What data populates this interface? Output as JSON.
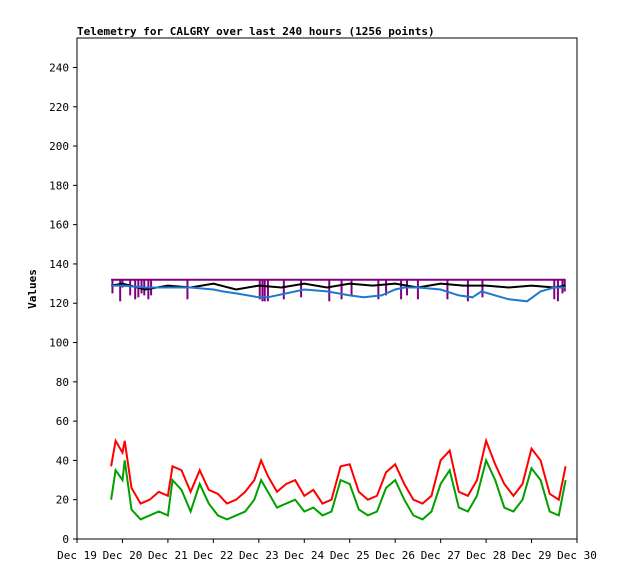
{
  "chart_data": {
    "type": "line",
    "title": "Telemetry for CALGRY over last 240 hours (1256 points)",
    "xlabel": "",
    "ylabel": "Values",
    "ylim": [
      0,
      255
    ],
    "xlim": [
      0,
      11
    ],
    "y_ticks": [
      0,
      20,
      40,
      60,
      80,
      100,
      120,
      140,
      160,
      180,
      200,
      220,
      240
    ],
    "x_ticks": [
      {
        "x": 0,
        "label": "Dec 19"
      },
      {
        "x": 1,
        "label": "Dec 20"
      },
      {
        "x": 2,
        "label": "Dec 21"
      },
      {
        "x": 3,
        "label": "Dec 22"
      },
      {
        "x": 4,
        "label": "Dec 23"
      },
      {
        "x": 5,
        "label": "Dec 24"
      },
      {
        "x": 6,
        "label": "Dec 25"
      },
      {
        "x": 7,
        "label": "Dec 26"
      },
      {
        "x": 8,
        "label": "Dec 27"
      },
      {
        "x": 9,
        "label": "Dec 28"
      },
      {
        "x": 10,
        "label": "Dec 29"
      },
      {
        "x": 11,
        "label": "Dec 30"
      }
    ],
    "grid": false,
    "legend": "none",
    "series": [
      {
        "color": "#7f007f",
        "style": "flat with downward spikes",
        "x": [
          0.75,
          10.75
        ],
        "values": [
          132,
          132
        ],
        "spikes": [
          {
            "x": 0.78,
            "low": 125
          },
          {
            "x": 0.95,
            "low": 121
          },
          {
            "x": 1.0,
            "low": 128
          },
          {
            "x": 1.17,
            "low": 124
          },
          {
            "x": 1.28,
            "low": 122
          },
          {
            "x": 1.35,
            "low": 123
          },
          {
            "x": 1.42,
            "low": 125
          },
          {
            "x": 1.48,
            "low": 124
          },
          {
            "x": 1.57,
            "low": 122
          },
          {
            "x": 1.63,
            "low": 124
          },
          {
            "x": 2.43,
            "low": 122
          },
          {
            "x": 4.02,
            "low": 122
          },
          {
            "x": 4.08,
            "low": 121
          },
          {
            "x": 4.13,
            "low": 121
          },
          {
            "x": 4.2,
            "low": 121
          },
          {
            "x": 4.55,
            "low": 122
          },
          {
            "x": 4.93,
            "low": 123
          },
          {
            "x": 5.55,
            "low": 121
          },
          {
            "x": 5.82,
            "low": 122
          },
          {
            "x": 6.04,
            "low": 124
          },
          {
            "x": 6.63,
            "low": 122
          },
          {
            "x": 6.8,
            "low": 124
          },
          {
            "x": 7.13,
            "low": 122
          },
          {
            "x": 7.26,
            "low": 124
          },
          {
            "x": 7.5,
            "low": 122
          },
          {
            "x": 8.15,
            "low": 122
          },
          {
            "x": 8.6,
            "low": 121
          },
          {
            "x": 8.92,
            "low": 123
          },
          {
            "x": 10.5,
            "low": 122
          },
          {
            "x": 10.58,
            "low": 121
          },
          {
            "x": 10.68,
            "low": 125
          },
          {
            "x": 10.73,
            "low": 126
          }
        ]
      },
      {
        "color": "#000000",
        "x": [
          0.75,
          1.0,
          1.5,
          2.0,
          2.5,
          3.0,
          3.5,
          4.0,
          4.5,
          5.0,
          5.5,
          6.0,
          6.5,
          7.0,
          7.5,
          8.0,
          8.5,
          9.0,
          9.5,
          10.0,
          10.5,
          10.75
        ],
        "values": [
          129,
          130,
          127,
          129,
          128,
          130,
          127,
          129,
          128,
          130,
          128,
          130,
          129,
          130,
          128,
          130,
          129,
          129,
          128,
          129,
          128,
          129
        ]
      },
      {
        "color": "#1f78d0",
        "x": [
          0.75,
          1.0,
          1.5,
          2.0,
          2.5,
          3.0,
          3.2,
          3.5,
          4.0,
          4.2,
          4.6,
          5.0,
          5.5,
          6.0,
          6.3,
          6.7,
          7.0,
          7.2,
          7.5,
          8.0,
          8.4,
          8.7,
          8.9,
          9.2,
          9.5,
          9.9,
          10.2,
          10.5,
          10.75
        ],
        "values": [
          129,
          129,
          128,
          128,
          128,
          127,
          126,
          125,
          123,
          123,
          125,
          127,
          126,
          124,
          123,
          124,
          127,
          128,
          128,
          127,
          124,
          123,
          126,
          124,
          122,
          121,
          126,
          128,
          128
        ]
      },
      {
        "color": "#ff0000",
        "x": [
          0.75,
          0.85,
          1.0,
          1.05,
          1.2,
          1.4,
          1.6,
          1.8,
          2.0,
          2.1,
          2.3,
          2.5,
          2.7,
          2.9,
          3.1,
          3.3,
          3.5,
          3.7,
          3.9,
          4.05,
          4.2,
          4.4,
          4.6,
          4.8,
          5.0,
          5.2,
          5.4,
          5.6,
          5.8,
          6.0,
          6.2,
          6.4,
          6.6,
          6.8,
          7.0,
          7.2,
          7.4,
          7.6,
          7.8,
          8.0,
          8.2,
          8.4,
          8.6,
          8.8,
          9.0,
          9.2,
          9.4,
          9.6,
          9.8,
          10.0,
          10.2,
          10.4,
          10.6,
          10.75
        ],
        "values": [
          37,
          50,
          44,
          50,
          26,
          18,
          20,
          24,
          22,
          37,
          35,
          24,
          35,
          25,
          23,
          18,
          20,
          24,
          30,
          40,
          32,
          24,
          28,
          30,
          22,
          25,
          18,
          20,
          37,
          38,
          24,
          20,
          22,
          34,
          38,
          28,
          20,
          18,
          22,
          40,
          45,
          24,
          22,
          30,
          50,
          38,
          28,
          22,
          28,
          46,
          40,
          23,
          20,
          37
        ]
      },
      {
        "color": "#00a000",
        "x": [
          0.75,
          0.85,
          1.0,
          1.05,
          1.2,
          1.4,
          1.6,
          1.8,
          2.0,
          2.1,
          2.3,
          2.5,
          2.7,
          2.9,
          3.1,
          3.3,
          3.5,
          3.7,
          3.9,
          4.05,
          4.2,
          4.4,
          4.6,
          4.8,
          5.0,
          5.2,
          5.4,
          5.6,
          5.8,
          6.0,
          6.2,
          6.4,
          6.6,
          6.8,
          7.0,
          7.2,
          7.4,
          7.6,
          7.8,
          8.0,
          8.2,
          8.4,
          8.6,
          8.8,
          9.0,
          9.2,
          9.4,
          9.6,
          9.8,
          10.0,
          10.2,
          10.4,
          10.6,
          10.75
        ],
        "values": [
          20,
          35,
          30,
          40,
          15,
          10,
          12,
          14,
          12,
          30,
          25,
          14,
          28,
          18,
          12,
          10,
          12,
          14,
          20,
          30,
          24,
          16,
          18,
          20,
          14,
          16,
          12,
          14,
          30,
          28,
          15,
          12,
          14,
          26,
          30,
          20,
          12,
          10,
          14,
          28,
          35,
          16,
          14,
          22,
          40,
          30,
          16,
          14,
          20,
          36,
          30,
          14,
          12,
          30
        ]
      }
    ]
  }
}
